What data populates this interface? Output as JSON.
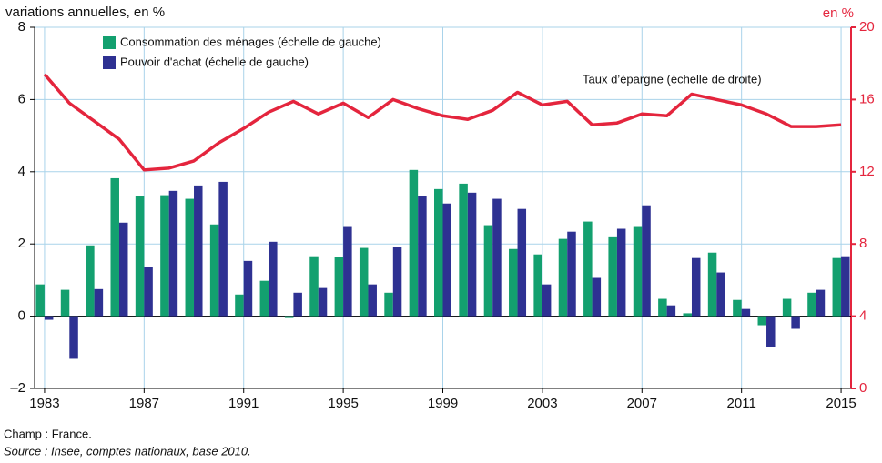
{
  "chart_data": {
    "type": "bar_line",
    "y_axis_label": "variations annuelles, en %",
    "y2_axis_label": "en %",
    "x": [
      1983,
      1984,
      1985,
      1986,
      1987,
      1988,
      1989,
      1990,
      1991,
      1992,
      1993,
      1994,
      1995,
      1996,
      1997,
      1998,
      1999,
      2000,
      2001,
      2002,
      2003,
      2004,
      2005,
      2006,
      2007,
      2008,
      2009,
      2010,
      2011,
      2012,
      2013,
      2014,
      2015
    ],
    "series": [
      {
        "name": "Consommation des ménages (échelle de gauche)",
        "type": "bar",
        "color": "#13a06f",
        "values": [
          0.88,
          0.73,
          1.96,
          3.82,
          3.32,
          3.35,
          3.25,
          2.54,
          0.6,
          0.98,
          -0.05,
          1.66,
          1.63,
          1.89,
          0.65,
          4.05,
          3.52,
          3.67,
          2.52,
          1.86,
          1.71,
          2.14,
          2.62,
          2.21,
          2.47,
          0.48,
          0.08,
          1.76,
          0.45,
          -0.25,
          0.48,
          0.65,
          1.61
        ]
      },
      {
        "name": "Pouvoir d'achat (échelle de gauche)",
        "type": "bar",
        "color": "#2e3192",
        "values": [
          -0.1,
          -1.18,
          0.75,
          2.59,
          1.36,
          3.47,
          3.62,
          3.72,
          1.53,
          2.06,
          0.65,
          0.78,
          2.47,
          0.88,
          1.91,
          3.32,
          3.12,
          3.42,
          3.25,
          2.97,
          0.88,
          2.34,
          1.06,
          2.42,
          3.07,
          0.3,
          1.61,
          1.21,
          0.2,
          -0.86,
          -0.35,
          0.73,
          1.66
        ]
      },
      {
        "name": "Taux d’épargne (échelle de droite)",
        "type": "line",
        "axis": "y2",
        "color": "#e4253d",
        "values": [
          17.4,
          15.8,
          14.8,
          13.8,
          12.1,
          12.2,
          12.6,
          13.6,
          14.4,
          15.3,
          15.9,
          15.2,
          15.8,
          15.0,
          16.0,
          15.5,
          15.1,
          14.9,
          15.4,
          16.4,
          15.7,
          15.9,
          14.6,
          14.7,
          15.2,
          15.1,
          16.3,
          16.0,
          15.7,
          15.2,
          14.5,
          14.5,
          14.6
        ]
      }
    ],
    "xlim": [
      1982.6,
      2015.4
    ],
    "xticks": [
      1983,
      1987,
      1991,
      1995,
      1999,
      2003,
      2007,
      2011,
      2015
    ],
    "ylim": [
      -2,
      8
    ],
    "yticks": [
      {
        "value": -2,
        "label": "–2"
      },
      0,
      2,
      4,
      6,
      8
    ],
    "y2lim": [
      0,
      20
    ],
    "y2ticks": [
      0,
      4,
      8,
      12,
      16,
      20
    ],
    "grid": true,
    "notes": [
      "Champ : France.",
      "Source : Insee, comptes nationaux, base 2010."
    ]
  }
}
